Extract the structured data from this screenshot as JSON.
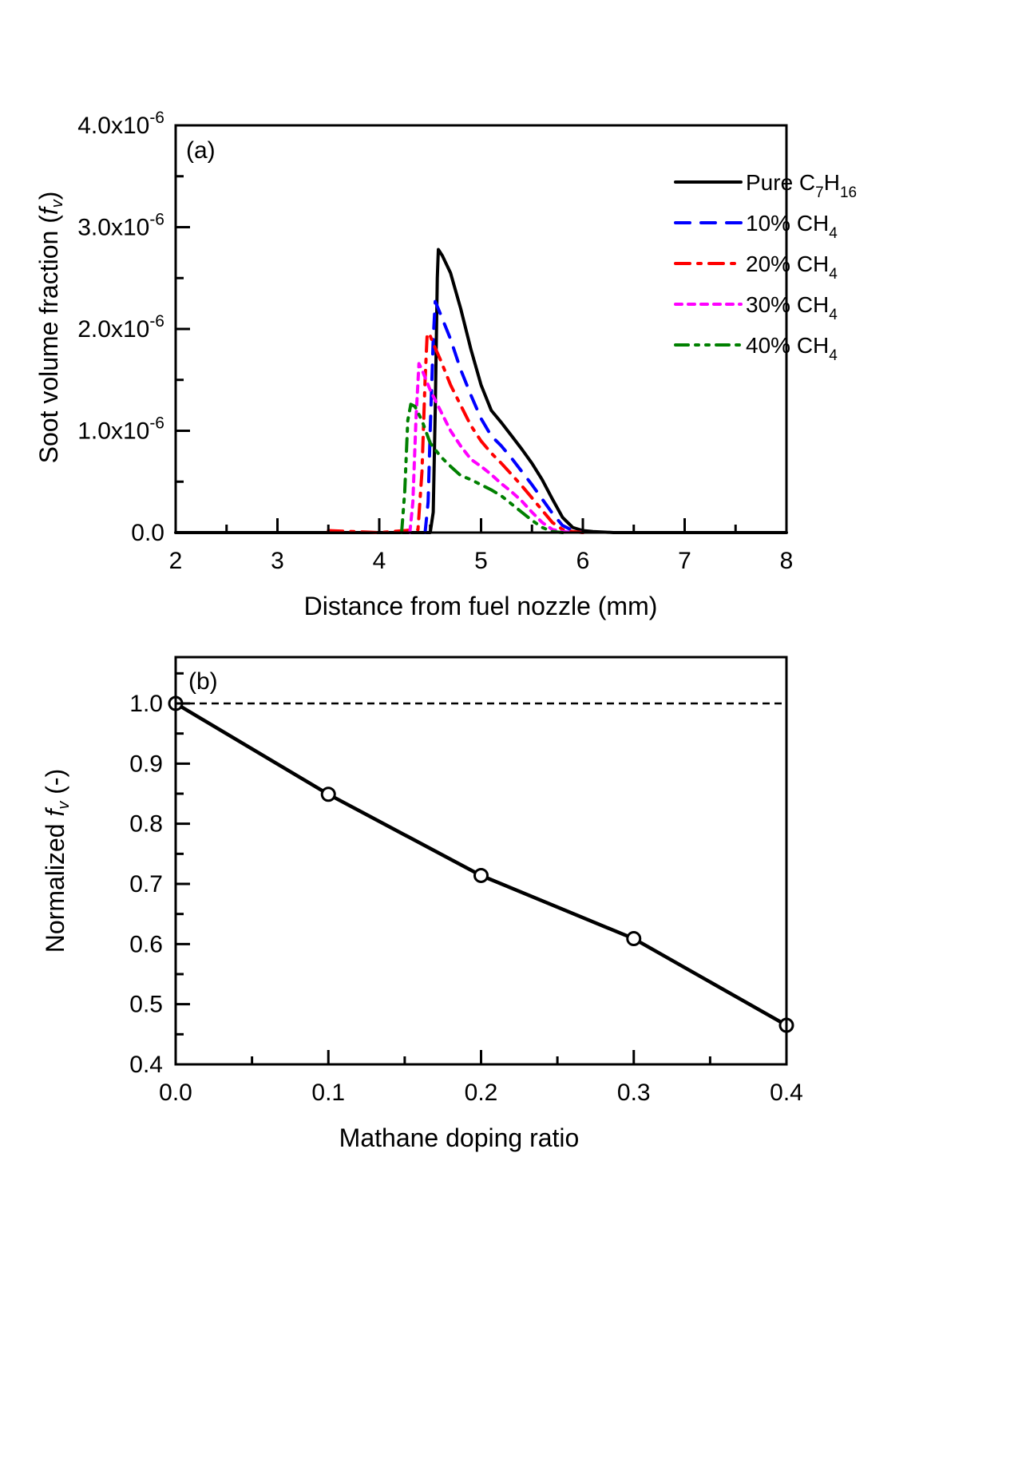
{
  "chart_data": [
    {
      "id": "a",
      "type": "line",
      "panel_label": "(a)",
      "title": "",
      "xlabel": "Distance from fuel nozzle (mm)",
      "ylabel_main": "Soot volume fraction (",
      "ylabel_italic": "f",
      "ylabel_sub": "v",
      "ylabel_close": ")",
      "xlim": [
        2,
        8
      ],
      "ylim": [
        0,
        4e-06
      ],
      "xticks": [
        2,
        3,
        4,
        5,
        6,
        7,
        8
      ],
      "xtick_labels": [
        "2",
        "3",
        "4",
        "5",
        "6",
        "7",
        "8"
      ],
      "yticks": [
        0,
        1e-06,
        2e-06,
        3e-06,
        4e-06
      ],
      "ytick_labels": [
        {
          "base": "0.0",
          "exp": ""
        },
        {
          "base": "1.0x10",
          "exp": "-6"
        },
        {
          "base": "2.0x10",
          "exp": "-6"
        },
        {
          "base": "3.0x10",
          "exp": "-6"
        },
        {
          "base": "4.0x10",
          "exp": "-6"
        }
      ],
      "grid": false,
      "legend_position": "top-right",
      "series": [
        {
          "name": "Pure C7H16",
          "legend_parts": [
            {
              "t": "Pure C",
              "s": ""
            },
            {
              "t": "7",
              "s": "sub"
            },
            {
              "t": "H",
              "s": ""
            },
            {
              "t": "16",
              "s": "sub"
            }
          ],
          "color": "#000000",
          "dash": "solid",
          "x": [
            2.0,
            4.4,
            4.5,
            4.53,
            4.55,
            4.57,
            4.58,
            4.62,
            4.7,
            4.8,
            4.9,
            5.0,
            5.1,
            5.2,
            5.3,
            5.4,
            5.5,
            5.6,
            5.7,
            5.8,
            5.9,
            6.0,
            6.1,
            6.3,
            6.5,
            8.0
          ],
          "y": [
            0,
            0,
            0.0,
            2e-07,
            1.2e-06,
            2.5e-06,
            2.78e-06,
            2.72e-06,
            2.55e-06,
            2.2e-06,
            1.8e-06,
            1.45e-06,
            1.2e-06,
            1.08e-06,
            9.5e-07,
            8.2e-07,
            6.8e-07,
            5.2e-07,
            3.3e-07,
            1.5e-07,
            5e-08,
            2e-08,
            1e-08,
            0.0,
            0.0,
            0.0
          ]
        },
        {
          "name": "10% CH4",
          "legend_parts": [
            {
              "t": "10% CH",
              "s": ""
            },
            {
              "t": "4",
              "s": "sub"
            }
          ],
          "color": "#0000ff",
          "dash": "dashed",
          "x": [
            4.45,
            4.48,
            4.5,
            4.53,
            4.55,
            4.6,
            4.7,
            4.8,
            4.9,
            5.0,
            5.1,
            5.2,
            5.3,
            5.4,
            5.5,
            5.6,
            5.7,
            5.8,
            5.9,
            6.0
          ],
          "y": [
            0.0,
            3e-07,
            1e-06,
            1.9e-06,
            2.27e-06,
            2.15e-06,
            1.9e-06,
            1.6e-06,
            1.35e-06,
            1.12e-06,
            9.5e-07,
            8.5e-07,
            7.3e-07,
            6e-07,
            4.7e-07,
            3.3e-07,
            1.9e-07,
            7e-08,
            2e-08,
            0.0
          ]
        },
        {
          "name": "20% CH4",
          "legend_parts": [
            {
              "t": "20% CH",
              "s": ""
            },
            {
              "t": "4",
              "s": "sub"
            }
          ],
          "color": "#ff0000",
          "dash": "dashdot",
          "x": [
            3.5,
            4.0,
            4.38,
            4.42,
            4.45,
            4.47,
            4.49,
            4.52,
            4.6,
            4.7,
            4.8,
            4.9,
            5.0,
            5.1,
            5.2,
            5.3,
            5.4,
            5.5,
            5.6,
            5.7,
            5.8,
            5.9,
            6.0
          ],
          "y": [
            2e-08,
            0.0,
            3e-08,
            6e-07,
            1.5e-06,
            1.93e-06,
            1.96e-06,
            1.88e-06,
            1.7e-06,
            1.45e-06,
            1.25e-06,
            1.05e-06,
            9e-07,
            7.8e-07,
            6.8e-07,
            5.7e-07,
            4.6e-07,
            3.4e-07,
            2.2e-07,
            1e-07,
            3e-08,
            1e-08,
            0.0
          ]
        },
        {
          "name": "30% CH4",
          "legend_parts": [
            {
              "t": "30% CH",
              "s": ""
            },
            {
              "t": "4",
              "s": "sub"
            }
          ],
          "color": "#ff00ff",
          "dash": "dotted",
          "x": [
            4.3,
            4.33,
            4.36,
            4.39,
            4.42,
            4.5,
            4.6,
            4.7,
            4.8,
            4.9,
            5.0,
            5.1,
            5.2,
            5.3,
            5.4,
            5.5,
            5.6,
            5.7,
            5.8,
            5.9
          ],
          "y": [
            0.0,
            3e-07,
            1.1e-06,
            1.66e-06,
            1.6e-06,
            1.4e-06,
            1.2e-06,
            1e-06,
            8.5e-07,
            7.2e-07,
            6.5e-07,
            5.7e-07,
            4.8e-07,
            4e-07,
            3.1e-07,
            2e-07,
            1e-07,
            3e-08,
            1e-08,
            0.0
          ]
        },
        {
          "name": "40% CH4",
          "legend_parts": [
            {
              "t": " 40% CH",
              "s": ""
            },
            {
              "t": "4",
              "s": "sub"
            }
          ],
          "color": "#008000",
          "dash": "dashdotdot",
          "x": [
            4.22,
            4.25,
            4.28,
            4.31,
            4.35,
            4.42,
            4.5,
            4.6,
            4.7,
            4.8,
            4.9,
            5.0,
            5.1,
            5.2,
            5.3,
            5.4,
            5.5,
            5.6,
            5.7,
            5.8
          ],
          "y": [
            0.0,
            4e-07,
            1.1e-06,
            1.26e-06,
            1.24e-06,
            1.1e-06,
            8.8e-07,
            7.5e-07,
            6.5e-07,
            5.6e-07,
            5.2e-07,
            4.7e-07,
            4.2e-07,
            3.6e-07,
            2.8e-07,
            2e-07,
            1.2e-07,
            5e-08,
            1e-08,
            0.0
          ]
        }
      ]
    },
    {
      "id": "b",
      "type": "line",
      "panel_label": "(b)",
      "title": "",
      "xlabel": "Mathane doping ratio",
      "ylabel_main": "Normalized ",
      "ylabel_italic": "f",
      "ylabel_sub": "v",
      "ylabel_close": " (-)",
      "xlim": [
        0.0,
        0.4
      ],
      "ylim": [
        0.4,
        1.077
      ],
      "xticks": [
        0.0,
        0.1,
        0.2,
        0.3,
        0.4
      ],
      "xtick_labels": [
        "0.0",
        "0.1",
        "0.2",
        "0.3",
        "0.4"
      ],
      "yticks": [
        0.4,
        0.5,
        0.6,
        0.7,
        0.8,
        0.9,
        1.0
      ],
      "ytick_labels": [
        "0.4",
        "0.5",
        "0.6",
        "0.7",
        "0.8",
        "0.9",
        "1.0"
      ],
      "grid": false,
      "reference_line": {
        "y": 1.0,
        "style": "dashed",
        "color": "#000000"
      },
      "series": [
        {
          "name": "Normalized fv",
          "color": "#000000",
          "marker": "open-circle",
          "x": [
            0.0,
            0.1,
            0.2,
            0.3,
            0.4
          ],
          "y": [
            1.0,
            0.849,
            0.714,
            0.609,
            0.465
          ]
        }
      ]
    }
  ]
}
